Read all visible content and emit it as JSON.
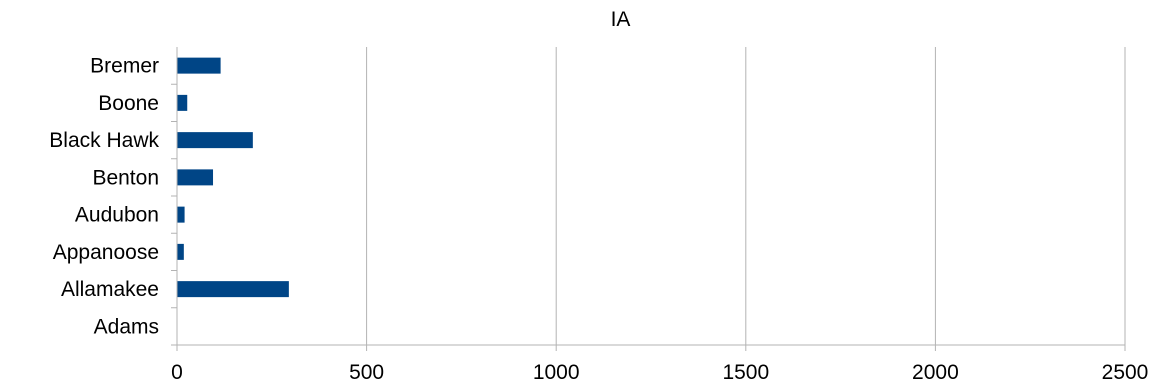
{
  "chart_data": {
    "type": "bar",
    "orientation": "horizontal",
    "title": "IA",
    "xlabel": "",
    "ylabel": "",
    "categories": [
      "Adams",
      "Allamakee",
      "Appanoose",
      "Audubon",
      "Benton",
      "Black Hawk",
      "Boone",
      "Bremer"
    ],
    "values": [
      0,
      295,
      18,
      20,
      95,
      200,
      27,
      115
    ],
    "xlim": [
      0,
      2500
    ],
    "xticks": [
      0,
      500,
      1000,
      1500,
      2000,
      2500
    ],
    "grid": true,
    "legend": "none",
    "bar_color": "#004586"
  }
}
